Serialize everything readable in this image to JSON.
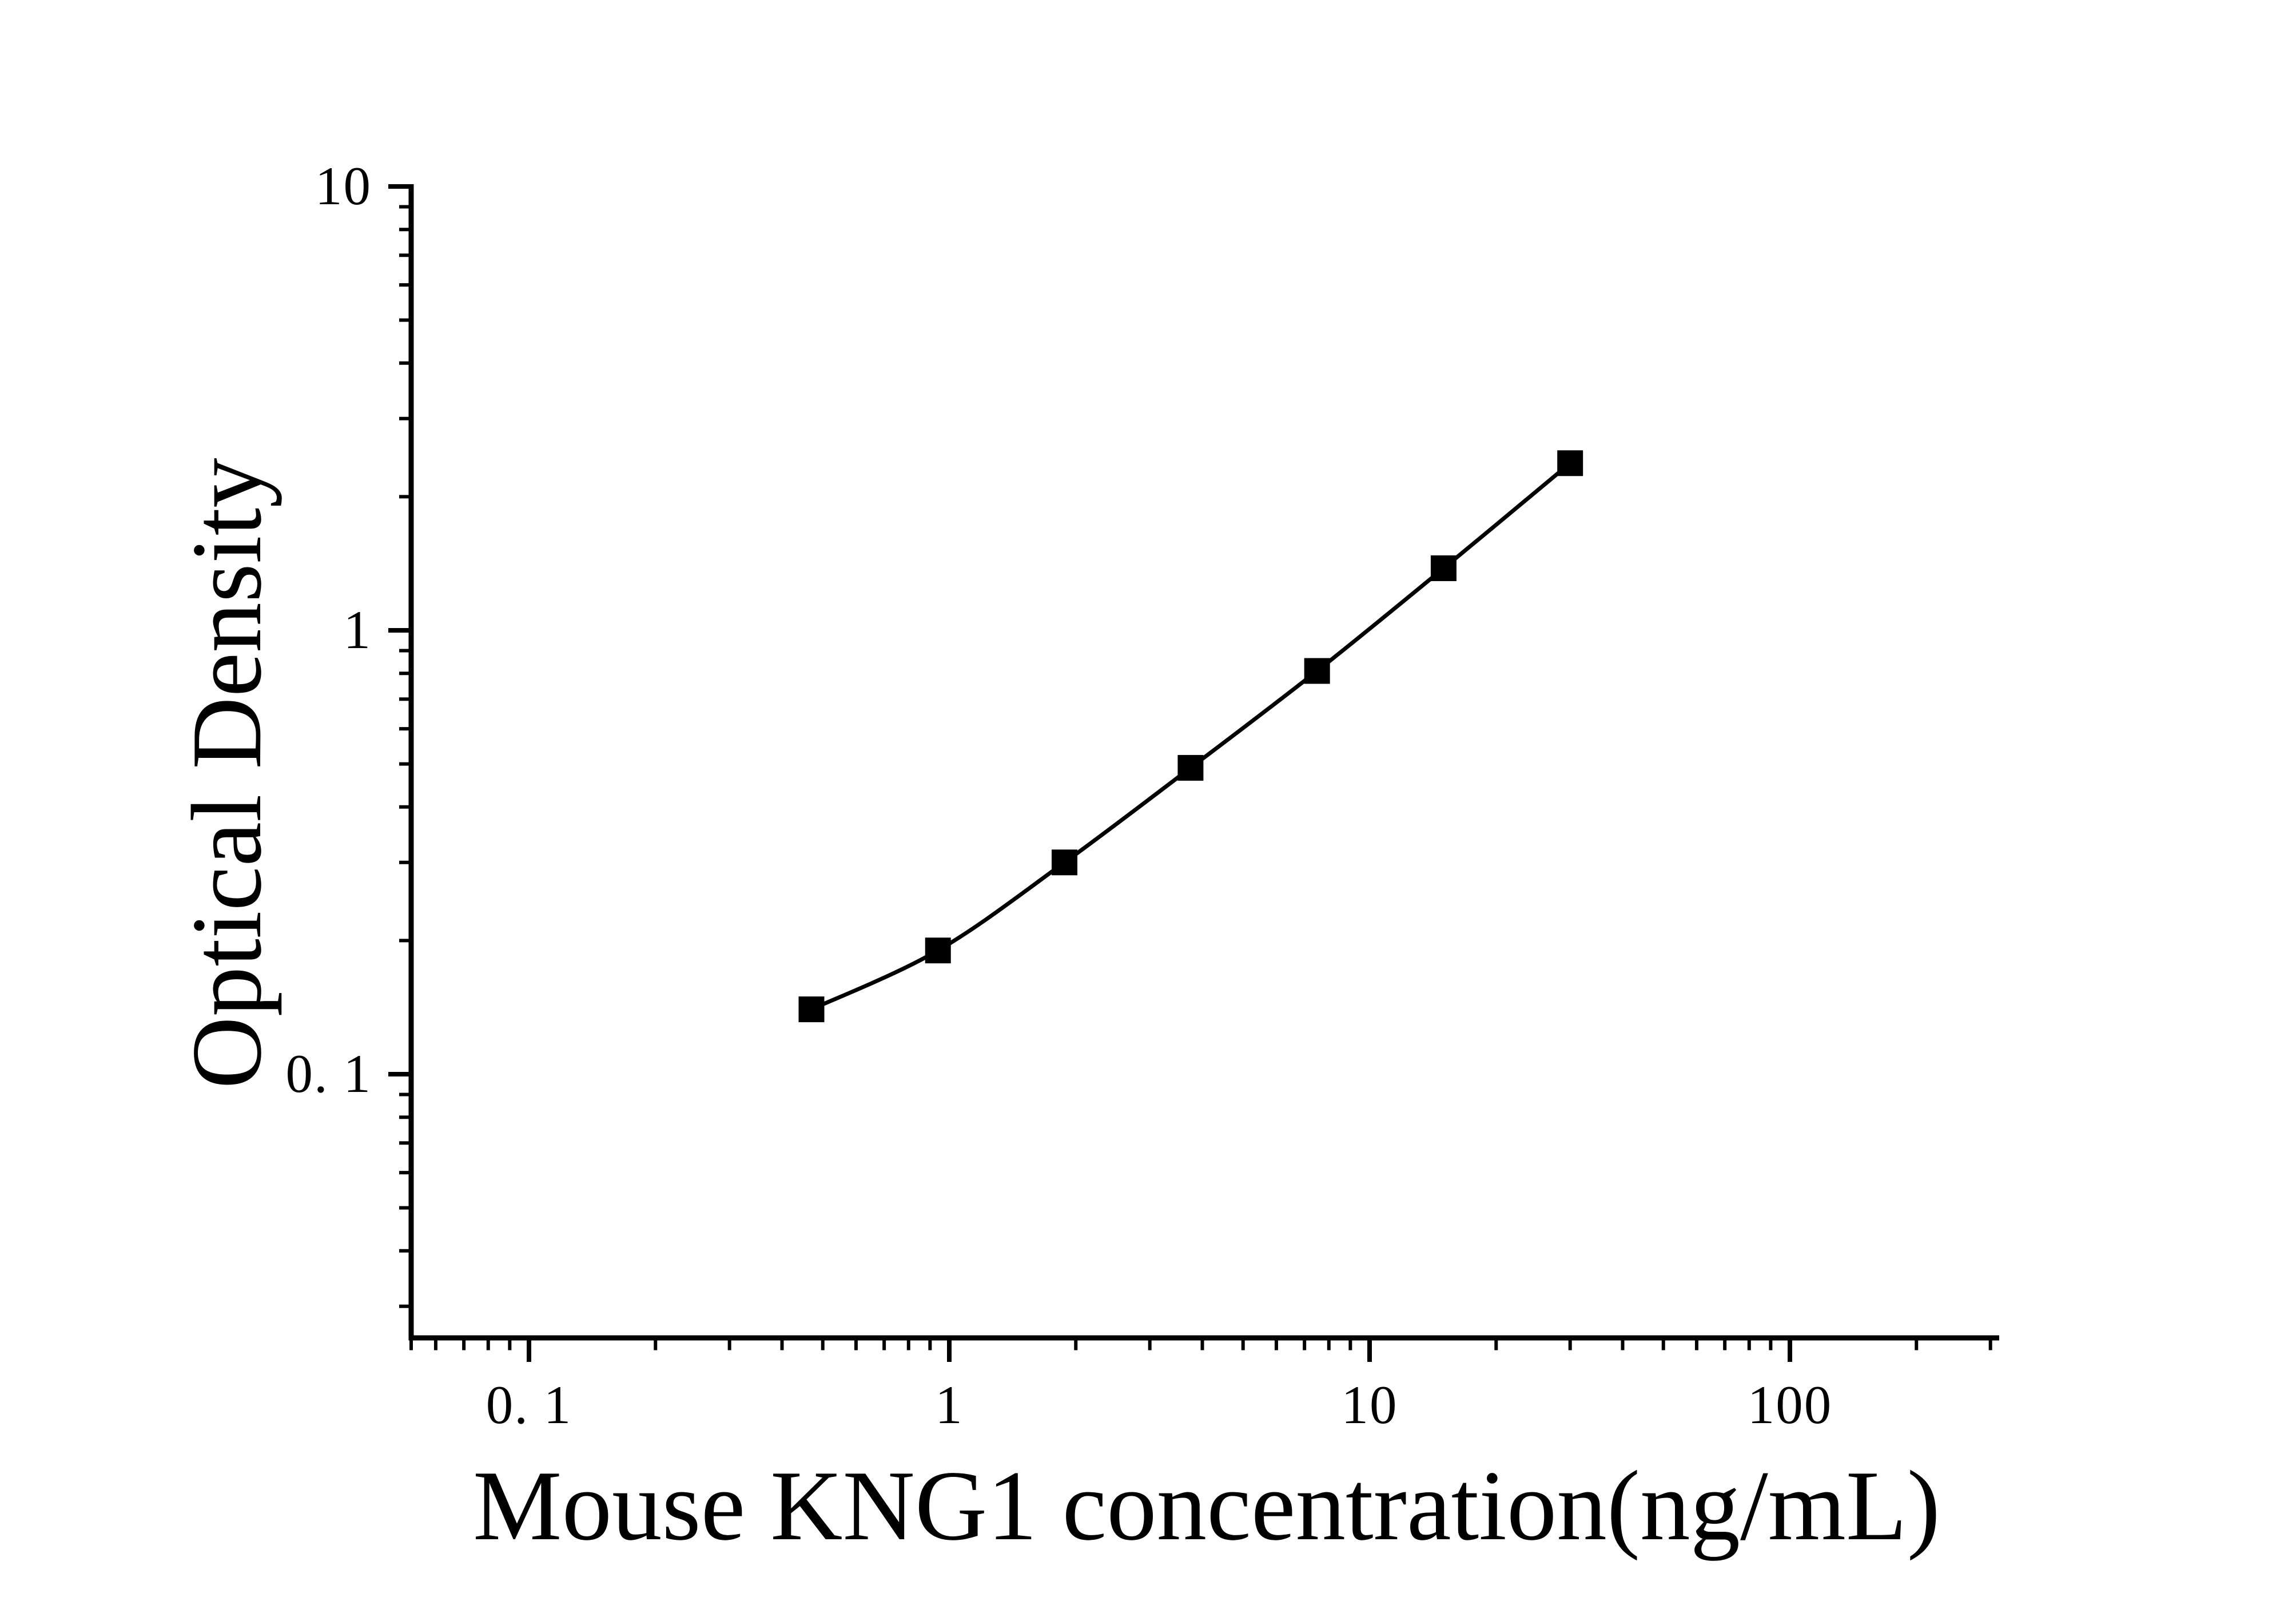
{
  "figure": {
    "background": "#ffffff",
    "line_color": "#000000",
    "marker_color": "#000000",
    "text_color": "#000000"
  },
  "chart_data": {
    "type": "line",
    "title": "",
    "xlabel": "Mouse KNG1 concentration(ng/mL)",
    "ylabel": "Optical Density",
    "x_scale": "log",
    "y_scale": "log",
    "grid": false,
    "legend": false,
    "marker": "filled-square",
    "x": [
      0.47,
      0.94,
      1.88,
      3.75,
      7.5,
      15,
      30
    ],
    "y": [
      0.14,
      0.19,
      0.3,
      0.49,
      0.81,
      1.38,
      2.38
    ],
    "x_range": [
      0.05,
      300
    ],
    "y_range": [
      0.028,
      10
    ],
    "x_ticks": [
      {
        "value": 0.1,
        "label": "0. 1"
      },
      {
        "value": 1,
        "label": "1"
      },
      {
        "value": 10,
        "label": "10"
      },
      {
        "value": 100,
        "label": "100"
      }
    ],
    "y_ticks": [
      {
        "value": 10,
        "label": "10"
      },
      {
        "value": 1,
        "label": "1"
      },
      {
        "value": 0.1,
        "label": "0. 1"
      }
    ]
  }
}
